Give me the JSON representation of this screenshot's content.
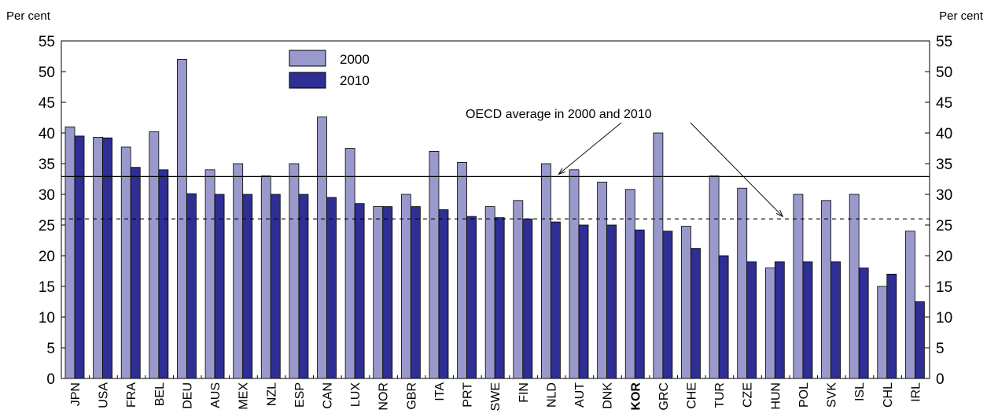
{
  "chart_data": {
    "type": "bar",
    "y_unit_left": "Per cent",
    "y_unit_right": "Per cent",
    "ylim": [
      0,
      55
    ],
    "yticks": [
      0,
      5,
      10,
      15,
      20,
      25,
      30,
      35,
      40,
      45,
      50,
      55
    ],
    "grid": false,
    "legend_position": "top-left",
    "categories": [
      "JPN",
      "USA",
      "FRA",
      "BEL",
      "DEU",
      "AUS",
      "MEX",
      "NZL",
      "ESP",
      "CAN",
      "LUX",
      "NOR",
      "GBR",
      "ITA",
      "PRT",
      "SWE",
      "FIN",
      "NLD",
      "AUT",
      "DNK",
      "KOR",
      "GRC",
      "CHE",
      "TUR",
      "CZE",
      "HUN",
      "POL",
      "SVK",
      "ISL",
      "CHL",
      "IRL"
    ],
    "highlight_category": "KOR",
    "series": [
      {
        "name": "2000",
        "color": "#9999cc",
        "values": [
          41,
          39.3,
          37.7,
          40.2,
          52,
          34,
          35,
          33,
          35,
          42.6,
          37.5,
          28,
          30,
          37,
          35.2,
          28,
          29,
          35,
          34,
          32,
          30.8,
          40,
          24.8,
          33,
          31,
          18,
          30,
          29,
          30,
          15,
          24
        ]
      },
      {
        "name": "2010",
        "color": "#2e2e94",
        "values": [
          39.5,
          39.2,
          34.4,
          34,
          30.1,
          30,
          30,
          30,
          30,
          29.5,
          28.5,
          28,
          28,
          27.5,
          26.4,
          26.2,
          26,
          25.5,
          25,
          25,
          24.2,
          24,
          21.2,
          20,
          19,
          19,
          19,
          19,
          18,
          17,
          12.5
        ]
      }
    ],
    "reference_lines": [
      {
        "value": 32.9,
        "style": "solid"
      },
      {
        "value": 26,
        "style": "dashed"
      }
    ],
    "annotation": {
      "text": "OECD average in 2000 and 2010",
      "arrow_targets": [
        {
          "category": "NLD",
          "value": 32.9
        },
        {
          "category": "HUN",
          "value": 26
        }
      ]
    }
  }
}
